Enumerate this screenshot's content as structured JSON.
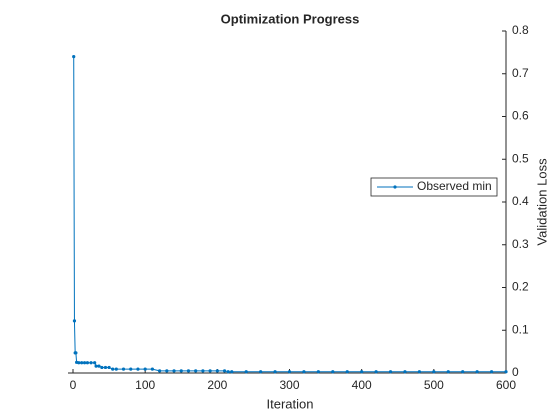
{
  "chart_data": {
    "type": "line",
    "title": "Optimization Progress",
    "x_label": "Iteration",
    "y_label": "Validation Loss",
    "x": [
      1,
      2,
      3,
      4,
      5,
      8,
      12,
      16,
      20,
      25,
      30,
      32,
      36,
      40,
      45,
      50,
      55,
      60,
      70,
      80,
      90,
      100,
      110,
      120,
      130,
      140,
      150,
      160,
      170,
      180,
      190,
      200,
      210,
      215,
      220,
      240,
      260,
      280,
      300,
      320,
      340,
      360,
      380,
      400,
      420,
      440,
      460,
      480,
      500,
      520,
      540,
      560,
      580,
      600
    ],
    "series": [
      {
        "name": "Observed min",
        "color": "#0072bd",
        "values": [
          0.74,
          0.122,
          0.047,
          0.047,
          0.025,
          0.024,
          0.024,
          0.024,
          0.024,
          0.024,
          0.024,
          0.016,
          0.016,
          0.013,
          0.013,
          0.013,
          0.009,
          0.009,
          0.009,
          0.009,
          0.009,
          0.009,
          0.009,
          0.005,
          0.005,
          0.005,
          0.005,
          0.005,
          0.005,
          0.005,
          0.005,
          0.005,
          0.005,
          0.003,
          0.003,
          0.003,
          0.003,
          0.003,
          0.003,
          0.003,
          0.003,
          0.003,
          0.003,
          0.003,
          0.003,
          0.003,
          0.003,
          0.003,
          0.003,
          0.003,
          0.003,
          0.003,
          0.003,
          0.003
        ]
      }
    ],
    "xlim": [
      0,
      600
    ],
    "xticks": [
      0,
      100,
      200,
      300,
      400,
      500,
      600
    ],
    "ylim": [
      0,
      0.8
    ],
    "yticks": [
      0,
      0.1,
      0.2,
      0.3,
      0.4,
      0.5,
      0.6,
      0.7,
      0.8
    ],
    "y_axis_side": "right",
    "legend": "east"
  }
}
